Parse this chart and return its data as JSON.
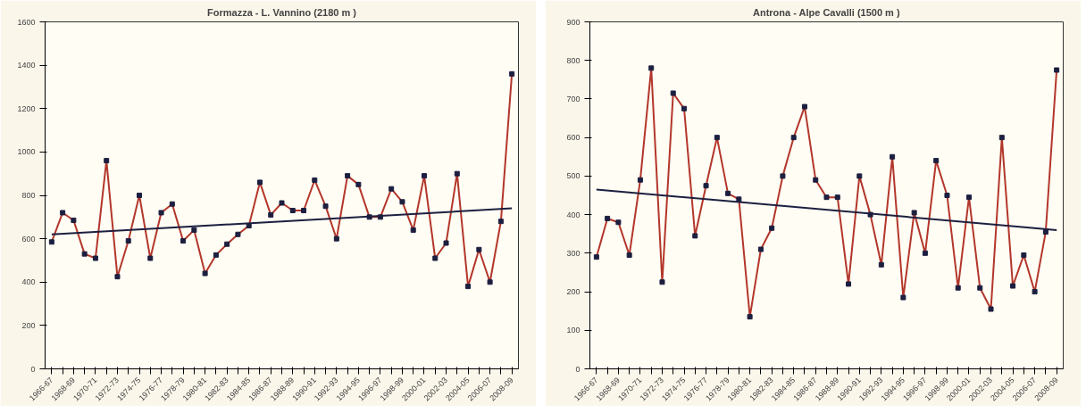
{
  "chart_data": [
    {
      "type": "line",
      "title": "Formazza - L. Vannino (2180 m )",
      "categories": [
        "1966-67",
        null,
        "1968-69",
        null,
        "1970-71",
        null,
        "1972-73",
        null,
        "1974-75",
        null,
        "1976-77",
        null,
        "1978-79",
        null,
        "1980-81",
        null,
        "1982-83",
        null,
        "1984-85",
        null,
        "1986-87",
        null,
        "1988-89",
        null,
        "1990-91",
        null,
        "1992-93",
        null,
        "1994-95",
        null,
        "1996-97",
        null,
        "1998-99",
        null,
        "2000-01",
        null,
        "2002-03",
        null,
        "2004-05",
        null,
        "2006-07",
        null,
        "2008-09"
      ],
      "ylim": [
        0,
        1600
      ],
      "yticks": [
        0,
        200,
        400,
        600,
        800,
        1000,
        1200,
        1400,
        1600
      ],
      "grid": false,
      "marker": "square",
      "series": [
        {
          "color": "#b3362b",
          "values": [
            585,
            720,
            685,
            530,
            510,
            960,
            425,
            590,
            800,
            510,
            720,
            760,
            590,
            640,
            440,
            525,
            575,
            620,
            660,
            860,
            710,
            765,
            730,
            730,
            870,
            750,
            600,
            890,
            850,
            700,
            700,
            830,
            770,
            640,
            890,
            510,
            580,
            900,
            380,
            550,
            400,
            680,
            1360
          ]
        },
        {
          "type": "line",
          "color": "#1c1f3f",
          "marker": "none",
          "values": [
            620,
            null,
            null,
            null,
            null,
            null,
            null,
            null,
            null,
            null,
            null,
            null,
            null,
            null,
            null,
            null,
            null,
            null,
            null,
            null,
            null,
            null,
            null,
            null,
            null,
            null,
            null,
            null,
            null,
            null,
            null,
            null,
            null,
            null,
            null,
            null,
            null,
            null,
            null,
            null,
            null,
            null,
            740
          ]
        }
      ]
    },
    {
      "type": "line",
      "title": "Antrona - Alpe Cavalli (1500 m )",
      "categories": [
        "1966-67",
        null,
        "1968-69",
        null,
        "1970-71",
        null,
        "1972-73",
        null,
        "1974-75",
        null,
        "1976-77",
        null,
        "1978-79",
        null,
        "1980-81",
        null,
        "1982-83",
        null,
        "1984-85",
        null,
        "1986-87",
        null,
        "1988-89",
        null,
        "1990-91",
        null,
        "1992-93",
        null,
        "1994-95",
        null,
        "1996-97",
        null,
        "1998-99",
        null,
        "2000-01",
        null,
        "2002-03",
        null,
        "2004-05",
        null,
        "2006-07",
        null,
        "2008-09"
      ],
      "ylim": [
        0,
        900
      ],
      "yticks": [
        0,
        100,
        200,
        300,
        400,
        500,
        600,
        700,
        800,
        900
      ],
      "grid": false,
      "marker": "square",
      "series": [
        {
          "color": "#b3362b",
          "values": [
            290,
            390,
            380,
            295,
            490,
            780,
            225,
            715,
            675,
            345,
            475,
            600,
            455,
            440,
            135,
            310,
            365,
            500,
            600,
            680,
            490,
            445,
            445,
            220,
            500,
            400,
            270,
            550,
            185,
            405,
            300,
            540,
            450,
            210,
            445,
            210,
            155,
            600,
            215,
            295,
            200,
            355,
            775
          ]
        },
        {
          "type": "line",
          "color": "#1c1f3f",
          "marker": "none",
          "values": [
            465,
            null,
            null,
            null,
            null,
            null,
            null,
            null,
            null,
            null,
            null,
            null,
            null,
            null,
            null,
            null,
            null,
            null,
            null,
            null,
            null,
            null,
            null,
            null,
            null,
            null,
            null,
            null,
            null,
            null,
            null,
            null,
            null,
            null,
            null,
            null,
            null,
            null,
            null,
            null,
            null,
            null,
            360
          ]
        }
      ]
    }
  ]
}
